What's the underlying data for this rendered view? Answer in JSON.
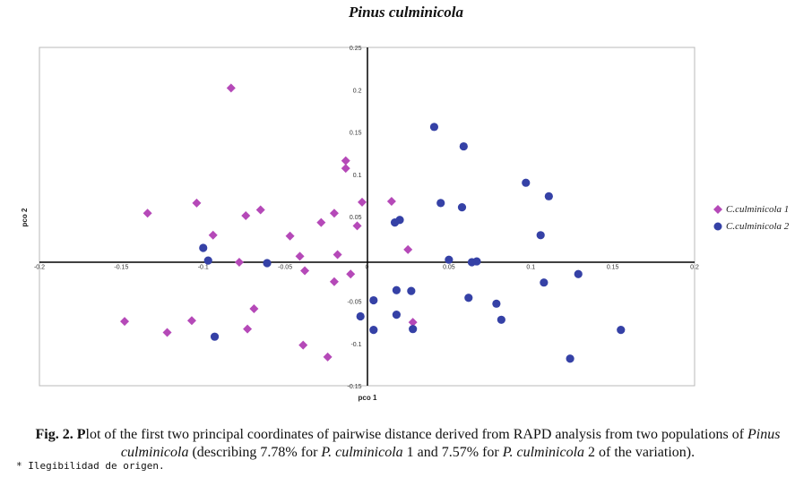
{
  "chart_data": {
    "type": "scatter",
    "title": "Pinus culminicola",
    "xlabel": "pco 1",
    "ylabel": "pco 2",
    "xlim": [
      -0.2,
      0.2
    ],
    "ylim": [
      -0.15,
      0.25
    ],
    "x_ticks": [
      "-0.2",
      "-0.15",
      "-0.1",
      "-0.05",
      "0",
      "0.05",
      "0.1",
      "0.15",
      "0.2"
    ],
    "y_ticks": [
      "-0.15",
      "-0.1",
      "-0.05",
      "0",
      "0.05",
      "0.1",
      "0.15",
      "0.2",
      "0.25"
    ],
    "grid": false,
    "legend_position": "right",
    "series": [
      {
        "name": "C.culminicola 1",
        "marker": "diamond",
        "color": "#b549b8",
        "points": [
          [
            -0.083,
            0.202
          ],
          [
            -0.013,
            0.116
          ],
          [
            -0.013,
            0.107
          ],
          [
            0.015,
            0.068
          ],
          [
            -0.104,
            0.066
          ],
          [
            -0.134,
            0.054
          ],
          [
            -0.065,
            0.058
          ],
          [
            -0.074,
            0.051
          ],
          [
            -0.02,
            0.054
          ],
          [
            -0.028,
            0.043
          ],
          [
            -0.003,
            0.067
          ],
          [
            -0.006,
            0.039
          ],
          [
            -0.094,
            0.028
          ],
          [
            -0.047,
            0.027
          ],
          [
            0.025,
            0.011
          ],
          [
            -0.041,
            0.003
          ],
          [
            -0.018,
            0.005
          ],
          [
            -0.078,
            -0.004
          ],
          [
            -0.038,
            -0.014
          ],
          [
            -0.01,
            -0.018
          ],
          [
            -0.02,
            -0.027
          ],
          [
            -0.069,
            -0.059
          ],
          [
            -0.148,
            -0.074
          ],
          [
            -0.107,
            -0.073
          ],
          [
            -0.122,
            -0.087
          ],
          [
            -0.073,
            -0.083
          ],
          [
            0.028,
            -0.075
          ],
          [
            -0.039,
            -0.102
          ],
          [
            -0.024,
            -0.116
          ]
        ]
      },
      {
        "name": "C.culminicola 2",
        "marker": "circle",
        "color": "#3541a6",
        "points": [
          [
            0.041,
            0.156
          ],
          [
            0.059,
            0.133
          ],
          [
            0.097,
            0.09
          ],
          [
            0.111,
            0.074
          ],
          [
            0.045,
            0.066
          ],
          [
            0.058,
            0.061
          ],
          [
            0.02,
            0.046
          ],
          [
            0.017,
            0.043
          ],
          [
            0.106,
            0.028
          ],
          [
            -0.1,
            0.013
          ],
          [
            0.05,
            -0.001
          ],
          [
            0.067,
            -0.003
          ],
          [
            0.064,
            -0.004
          ],
          [
            -0.097,
            -0.002
          ],
          [
            -0.061,
            -0.005
          ],
          [
            0.129,
            -0.018
          ],
          [
            0.108,
            -0.028
          ],
          [
            0.018,
            -0.037
          ],
          [
            0.027,
            -0.038
          ],
          [
            0.062,
            -0.046
          ],
          [
            0.004,
            -0.049
          ],
          [
            0.079,
            -0.053
          ],
          [
            0.018,
            -0.066
          ],
          [
            -0.004,
            -0.068
          ],
          [
            0.082,
            -0.072
          ],
          [
            0.028,
            -0.083
          ],
          [
            0.004,
            -0.084
          ],
          [
            0.155,
            -0.084
          ],
          [
            -0.093,
            -0.092
          ],
          [
            0.124,
            -0.118
          ]
        ]
      }
    ]
  },
  "caption": {
    "fig_label": "Fig. 2.",
    "bold_letter": "P",
    "text_1": "lot of the first two principal coordinates of pairwise distance derived from RAPD analysis from two populations of ",
    "species_1": "Pinus culminicola",
    "text_2": " (describing 7.78% for ",
    "species_2": "P. culminicola",
    "text_3": " 1 and 7.57% for ",
    "species_3": "P. culminicola",
    "text_4": " 2 of the variation)."
  },
  "footnote": "* Ilegibilidad de origen."
}
